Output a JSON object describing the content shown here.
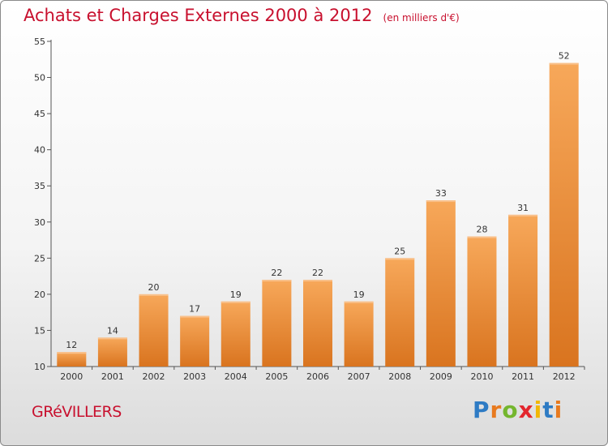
{
  "chart_data": {
    "type": "bar",
    "title": "Achats et Charges Externes 2000 à 2012",
    "subtitle": "(en milliers d'€)",
    "categories": [
      "2000",
      "2001",
      "2002",
      "2003",
      "2004",
      "2005",
      "2006",
      "2007",
      "2008",
      "2009",
      "2010",
      "2011",
      "2012"
    ],
    "values": [
      12,
      14,
      20,
      17,
      19,
      22,
      22,
      19,
      25,
      33,
      28,
      31,
      52
    ],
    "ylim": [
      10,
      55
    ],
    "yticks": [
      10,
      15,
      20,
      25,
      30,
      35,
      40,
      45,
      50,
      55
    ],
    "grid": false,
    "colors": {
      "bar_top": "#f7a85a",
      "bar_bottom": "#d9741f",
      "title": "#c8102e"
    }
  },
  "commune": "GRéVILLERS",
  "logo": {
    "text": "Proxiti",
    "colors": [
      "#2e7bc4",
      "#e87a1f",
      "#74b62e",
      "#e3262e",
      "#f2b705",
      "#2e7bc4",
      "#e87a1f"
    ]
  }
}
